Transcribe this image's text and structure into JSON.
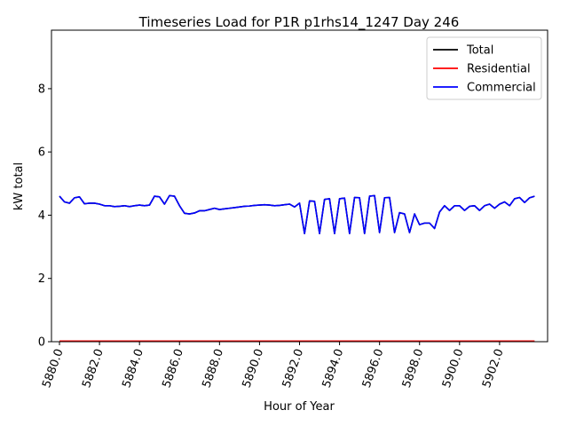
{
  "chart_data": {
    "type": "line",
    "title": "Timeseries Load for P1R p1rhs14_1247  Day 246",
    "xlabel": "Hour of Year",
    "ylabel": "kW total",
    "xlim": [
      5879.6,
      5904.4
    ],
    "ylim": [
      0,
      9.85
    ],
    "xticks": [
      5880,
      5882,
      5884,
      5886,
      5888,
      5890,
      5892,
      5894,
      5896,
      5898,
      5900,
      5902
    ],
    "xtick_labels": [
      "5880.0",
      "5882.0",
      "5884.0",
      "5886.0",
      "5888.0",
      "5890.0",
      "5892.0",
      "5894.0",
      "5896.0",
      "5898.0",
      "5900.0",
      "5902.0"
    ],
    "yticks": [
      0,
      2,
      4,
      6,
      8
    ],
    "ytick_labels": [
      "0",
      "2",
      "4",
      "6",
      "8"
    ],
    "legend_position": "top-right",
    "grid": false,
    "x": [
      5880.0,
      5880.25,
      5880.5,
      5880.75,
      5881.0,
      5881.25,
      5881.5,
      5881.75,
      5882.0,
      5882.25,
      5882.5,
      5882.75,
      5883.0,
      5883.25,
      5883.5,
      5883.75,
      5884.0,
      5884.25,
      5884.5,
      5884.75,
      5885.0,
      5885.25,
      5885.5,
      5885.75,
      5886.0,
      5886.25,
      5886.5,
      5886.75,
      5887.0,
      5887.25,
      5887.5,
      5887.75,
      5888.0,
      5888.25,
      5888.5,
      5888.75,
      5889.0,
      5889.25,
      5889.5,
      5889.75,
      5890.0,
      5890.25,
      5890.5,
      5890.75,
      5891.0,
      5891.25,
      5891.5,
      5891.75,
      5892.0,
      5892.25,
      5892.5,
      5892.75,
      5893.0,
      5893.25,
      5893.5,
      5893.75,
      5894.0,
      5894.25,
      5894.5,
      5894.75,
      5895.0,
      5895.25,
      5895.5,
      5895.75,
      5896.0,
      5896.25,
      5896.5,
      5896.75,
      5897.0,
      5897.25,
      5897.5,
      5897.75,
      5898.0,
      5898.25,
      5898.5,
      5898.75,
      5899.0,
      5899.25,
      5899.5,
      5899.75,
      5900.0,
      5900.25,
      5900.5,
      5900.75,
      5901.0,
      5901.25,
      5901.5,
      5901.75,
      5902.0,
      5902.25,
      5902.5,
      5902.75,
      5903.0,
      5903.25,
      5903.5,
      5903.75
    ],
    "series": [
      {
        "name": "Total",
        "color": "#000000",
        "values": [
          4.6,
          4.42,
          4.38,
          4.55,
          4.58,
          4.36,
          4.38,
          4.38,
          4.35,
          4.3,
          4.3,
          4.27,
          4.28,
          4.3,
          4.27,
          4.3,
          4.32,
          4.3,
          4.32,
          4.6,
          4.58,
          4.35,
          4.62,
          4.6,
          4.3,
          4.06,
          4.04,
          4.07,
          4.14,
          4.14,
          4.18,
          4.22,
          4.18,
          4.2,
          4.22,
          4.24,
          4.26,
          4.28,
          4.29,
          4.31,
          4.32,
          4.33,
          4.32,
          4.3,
          4.31,
          4.33,
          4.35,
          4.26,
          4.38,
          3.42,
          4.45,
          4.44,
          3.42,
          4.5,
          4.52,
          3.42,
          4.52,
          4.54,
          3.42,
          4.56,
          4.55,
          3.42,
          4.6,
          4.62,
          3.45,
          4.55,
          4.56,
          3.45,
          4.08,
          4.04,
          3.45,
          4.04,
          3.7,
          3.75,
          3.75,
          3.58,
          4.1,
          4.3,
          4.15,
          4.3,
          4.3,
          4.15,
          4.28,
          4.3,
          4.15,
          4.3,
          4.35,
          4.22,
          4.35,
          4.42,
          4.3,
          4.52,
          4.56,
          4.4,
          4.55,
          4.6
        ]
      },
      {
        "name": "Residential",
        "color": "#ff0000",
        "values": [
          0.02,
          0.02,
          0.02,
          0.02,
          0.02,
          0.02,
          0.02,
          0.02,
          0.02,
          0.02,
          0.02,
          0.02,
          0.02,
          0.02,
          0.02,
          0.02,
          0.02,
          0.02,
          0.02,
          0.02,
          0.02,
          0.02,
          0.02,
          0.02,
          0.02,
          0.02,
          0.02,
          0.02,
          0.02,
          0.02,
          0.02,
          0.02,
          0.02,
          0.02,
          0.02,
          0.02,
          0.02,
          0.02,
          0.02,
          0.02,
          0.02,
          0.02,
          0.02,
          0.02,
          0.02,
          0.02,
          0.02,
          0.02,
          0.02,
          0.02,
          0.02,
          0.02,
          0.02,
          0.02,
          0.02,
          0.02,
          0.02,
          0.02,
          0.02,
          0.02,
          0.02,
          0.02,
          0.02,
          0.02,
          0.02,
          0.02,
          0.02,
          0.02,
          0.02,
          0.02,
          0.02,
          0.02,
          0.02,
          0.02,
          0.02,
          0.02,
          0.02,
          0.02,
          0.02,
          0.02,
          0.02,
          0.02,
          0.02,
          0.02,
          0.02,
          0.02,
          0.02,
          0.02,
          0.02,
          0.02,
          0.02,
          0.02,
          0.02,
          0.02,
          0.02,
          0.02
        ]
      },
      {
        "name": "Commercial",
        "color": "#0000ff",
        "values": [
          4.6,
          4.42,
          4.38,
          4.55,
          4.58,
          4.36,
          4.38,
          4.38,
          4.35,
          4.3,
          4.3,
          4.27,
          4.28,
          4.3,
          4.27,
          4.3,
          4.32,
          4.3,
          4.32,
          4.6,
          4.58,
          4.35,
          4.62,
          4.6,
          4.3,
          4.06,
          4.04,
          4.07,
          4.14,
          4.14,
          4.18,
          4.22,
          4.18,
          4.2,
          4.22,
          4.24,
          4.26,
          4.28,
          4.29,
          4.31,
          4.32,
          4.33,
          4.32,
          4.3,
          4.31,
          4.33,
          4.35,
          4.26,
          4.38,
          3.42,
          4.45,
          4.44,
          3.42,
          4.5,
          4.52,
          3.42,
          4.52,
          4.54,
          3.42,
          4.56,
          4.55,
          3.42,
          4.6,
          4.62,
          3.45,
          4.55,
          4.56,
          3.45,
          4.08,
          4.04,
          3.45,
          4.04,
          3.7,
          3.75,
          3.75,
          3.58,
          4.1,
          4.3,
          4.15,
          4.3,
          4.3,
          4.15,
          4.28,
          4.3,
          4.15,
          4.3,
          4.35,
          4.22,
          4.35,
          4.42,
          4.3,
          4.52,
          4.56,
          4.4,
          4.55,
          4.6
        ]
      }
    ]
  }
}
